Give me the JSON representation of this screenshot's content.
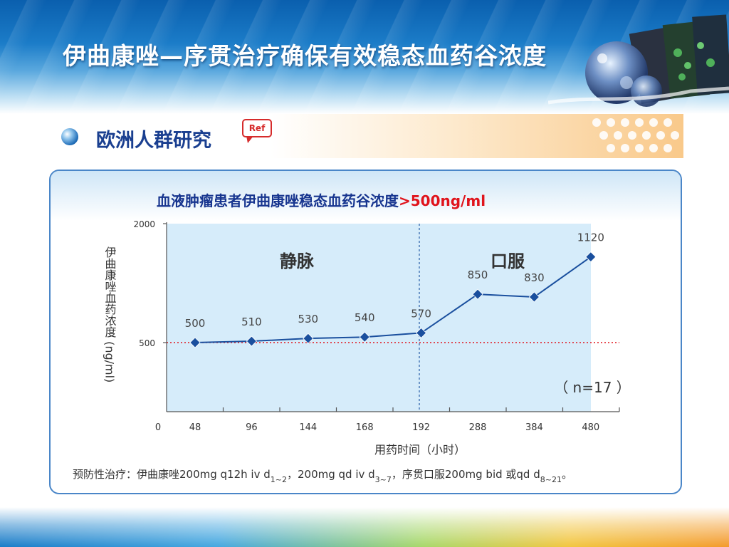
{
  "header": {
    "title": "伊曲康唑—序贯治疗确保有效稳态血药谷浓度"
  },
  "subtitle": {
    "text": "欧洲人群研究",
    "ref_badge": "Ref"
  },
  "chart_title": {
    "text": "血液肿瘤患者伊曲康唑稳态血药谷浓度",
    "highlight": ">500ng/ml"
  },
  "chart_data": {
    "type": "line",
    "title": "血液肿瘤患者伊曲康唑稳态血药谷浓度>500ng/ml",
    "xlabel": "用药时间（小时）",
    "ylabel": "伊曲康唑血药浓度 (ng/ml)",
    "origin_label": "0",
    "x": [
      "48",
      "96",
      "144",
      "168",
      "192",
      "288",
      "384",
      "480"
    ],
    "series": [
      {
        "values": [
          500,
          510,
          530,
          540,
          570,
          850,
          830,
          1120
        ]
      }
    ],
    "data_labels": [
      "500",
      "510",
      "530",
      "540",
      "570",
      "850",
      "830",
      "1120"
    ],
    "y_ticks": [
      "2000",
      "500"
    ],
    "reference_line": {
      "value": 500,
      "color": "#e0141c",
      "style": "dotted"
    },
    "phases": [
      {
        "label": "静脉",
        "from": "48",
        "to": "192"
      },
      {
        "label": "口服",
        "from": "192",
        "to": "480"
      }
    ],
    "phase_divider_after": "192",
    "annotation": "（ n=17 ）",
    "line_color": "#1a4f9e",
    "marker_color": "#1a4f9e",
    "plot_bg_color": "#d6ecfa"
  },
  "footnote": {
    "p1": "预防性治疗：伊曲康唑200mg q12h iv d",
    "s1": "1~2",
    "p2": "，200mg qd iv d",
    "s2": "3~7",
    "p3": "，序贯口服200mg bid 或qd d",
    "s3": "8~21",
    "p4": "。"
  },
  "colors": {
    "title_blue": "#17358f",
    "accent_red": "#e0141c",
    "panel_border": "#4a86c8"
  }
}
